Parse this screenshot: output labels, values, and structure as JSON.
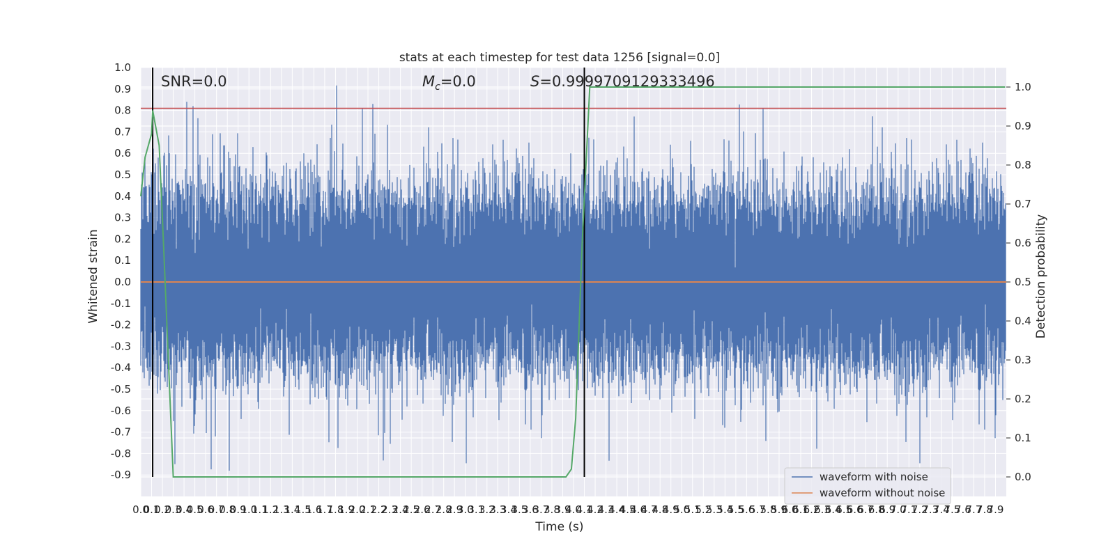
{
  "chart_data": {
    "type": "line",
    "title": "stats at each timestep for test data 1256 [signal=0.0]",
    "xlabel": "Time (s)",
    "ylabel": "Whitened strain",
    "y2label": "Detection probability",
    "xlim": [
      0.0,
      8.0
    ],
    "ylim": [
      -1.0,
      1.0
    ],
    "y2lim": [
      -0.05,
      1.05
    ],
    "xtick_labels": [
      "0.0",
      "0.1",
      "0.2",
      "0.3",
      "0.4",
      "0.5",
      "0.6",
      "0.7",
      "0.8",
      "0.9",
      "1.0",
      "1.1",
      "1.2",
      "1.3",
      "1.4",
      "1.5",
      "1.6",
      "1.7",
      "1.8",
      "1.9",
      "2.0",
      "2.1",
      "2.2",
      "2.3",
      "2.4",
      "2.5",
      "2.6",
      "2.7",
      "2.8",
      "2.9",
      "3.0",
      "3.1",
      "3.2",
      "3.3",
      "3.4",
      "3.5",
      "3.6",
      "3.7",
      "3.8",
      "3.9",
      "4.0",
      "4.1",
      "4.2",
      "4.3",
      "4.4",
      "4.5",
      "4.6",
      "4.7",
      "4.8",
      "4.9",
      "5.0",
      "5.1",
      "5.2",
      "5.3",
      "5.4",
      "5.5",
      "5.6",
      "5.7",
      "5.8",
      "5.9",
      "6.0",
      "6.1",
      "6.2",
      "6.3",
      "6.4",
      "6.5",
      "6.6",
      "6.7",
      "6.8",
      "6.9",
      "7.0",
      "7.1",
      "7.2",
      "7.3",
      "7.4",
      "7.5",
      "7.6",
      "7.7",
      "7.8",
      "7.9"
    ],
    "ytick_labels": [
      "1.0",
      "0.9",
      "0.8",
      "0.7",
      "0.6",
      "0.5",
      "0.4",
      "0.3",
      "0.2",
      "0.1",
      "0.0",
      "-0.1",
      "-0.2",
      "-0.3",
      "-0.4",
      "-0.5",
      "-0.6",
      "-0.7",
      "-0.8",
      "-0.9"
    ],
    "ytick_values": [
      1.0,
      0.9,
      0.8,
      0.7,
      0.6,
      0.5,
      0.4,
      0.3,
      0.2,
      0.1,
      0.0,
      -0.1,
      -0.2,
      -0.3,
      -0.4,
      -0.5,
      -0.6,
      -0.7,
      -0.8,
      -0.9
    ],
    "y2tick_labels": [
      "1.0",
      "0.9",
      "0.8",
      "0.7",
      "0.6",
      "0.5",
      "0.4",
      "0.3",
      "0.2",
      "0.1",
      "0.0"
    ],
    "y2tick_values": [
      1.0,
      0.9,
      0.8,
      0.7,
      0.6,
      0.5,
      0.4,
      0.3,
      0.2,
      0.1,
      0.0
    ],
    "annotations": {
      "snr": "SNR=0.0",
      "mc": "=0.0",
      "s": "=0.9999709129333496"
    },
    "vlines_x": [
      0.11,
      4.1
    ],
    "threshold_y": 0.81,
    "legend": {
      "placement": "lower-right"
    },
    "series": [
      {
        "name": "waveform with noise",
        "color": "#4c72b0",
        "noise_envelope": {
          "typical_min": -0.4,
          "typical_max": 0.45,
          "extreme_min": -0.88,
          "extreme_max": 1.0
        }
      },
      {
        "name": "waveform without noise",
        "color": "#dd8452",
        "constant_value": 0.0
      },
      {
        "name": "detection probability",
        "color": "#55a868",
        "axis": "right",
        "x": [
          0.0,
          0.04,
          0.1,
          0.11,
          0.17,
          0.21,
          0.3,
          0.4,
          1.0,
          2.0,
          3.0,
          3.05,
          3.3,
          3.7,
          3.93,
          3.98,
          4.02,
          4.08,
          4.15,
          5.0,
          6.0,
          7.0,
          7.99
        ],
        "y": [
          0.72,
          0.82,
          0.88,
          0.94,
          0.85,
          0.6,
          0.0,
          0.0,
          0.0,
          0.0,
          0.0,
          0.0,
          0.0,
          0.0,
          0.0,
          0.02,
          0.15,
          0.6,
          1.0,
          1.0,
          1.0,
          1.0,
          1.0
        ]
      }
    ]
  }
}
